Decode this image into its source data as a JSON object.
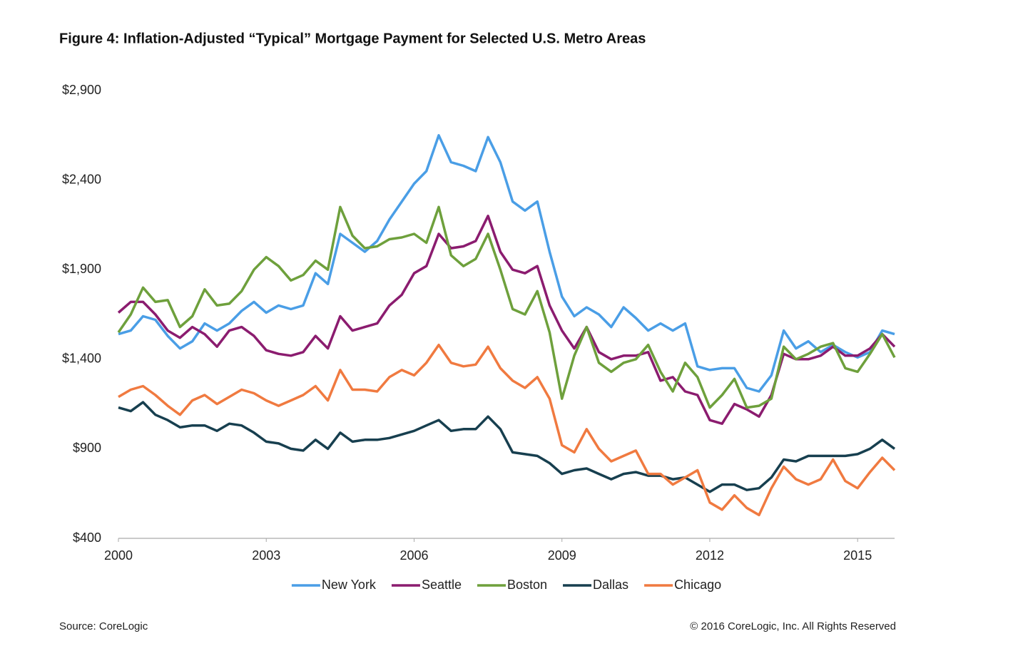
{
  "chart_data": {
    "type": "line",
    "title": "Figure 4: Inflation-Adjusted “Typical” Mortgage Payment for Selected U.S. Metro Areas",
    "source": "Source: CoreLogic",
    "copyright": "© 2016 CoreLogic, Inc. All Rights Reserved",
    "x": [
      2000,
      2000.25,
      2000.5,
      2000.75,
      2001,
      2001.25,
      2001.5,
      2001.75,
      2002,
      2002.25,
      2002.5,
      2002.75,
      2003,
      2003.25,
      2003.5,
      2003.75,
      2004,
      2004.25,
      2004.5,
      2004.75,
      2005,
      2005.25,
      2005.5,
      2005.75,
      2006,
      2006.25,
      2006.5,
      2006.75,
      2007,
      2007.25,
      2007.5,
      2007.75,
      2008,
      2008.25,
      2008.5,
      2008.75,
      2009,
      2009.25,
      2009.5,
      2009.75,
      2010,
      2010.25,
      2010.5,
      2010.75,
      2011,
      2011.25,
      2011.5,
      2011.75,
      2012,
      2012.25,
      2012.5,
      2012.75,
      2013,
      2013.25,
      2013.5,
      2013.75,
      2014,
      2014.25,
      2014.5,
      2014.75,
      2015,
      2015.25,
      2015.5,
      2015.75
    ],
    "xlim": [
      2000,
      2015.75
    ],
    "xticks": [
      2000,
      2003,
      2006,
      2009,
      2012,
      2015
    ],
    "ylim": [
      400,
      2900
    ],
    "yticks": [
      {
        "value": 400,
        "label": "$400"
      },
      {
        "value": 900,
        "label": "$900"
      },
      {
        "value": 1400,
        "label": "$1,400"
      },
      {
        "value": 1900,
        "label": "$1,900"
      },
      {
        "value": 2400,
        "label": "$2,400"
      },
      {
        "value": 2900,
        "label": "$2,900"
      }
    ],
    "grid": false,
    "legend": "bottom",
    "series": [
      {
        "name": "New York",
        "color": "#4a9ee6",
        "values": [
          1540,
          1560,
          1640,
          1620,
          1530,
          1460,
          1500,
          1600,
          1560,
          1600,
          1670,
          1720,
          1660,
          1700,
          1680,
          1700,
          1880,
          1820,
          2100,
          2050,
          2000,
          2060,
          2180,
          2280,
          2380,
          2450,
          2650,
          2500,
          2480,
          2450,
          2640,
          2500,
          2280,
          2230,
          2280,
          2000,
          1750,
          1640,
          1690,
          1650,
          1580,
          1690,
          1630,
          1560,
          1600,
          1560,
          1600,
          1360,
          1340,
          1350,
          1350,
          1240,
          1220,
          1310,
          1560,
          1460,
          1500,
          1440,
          1480,
          1440,
          1410,
          1440,
          1560,
          1540
        ]
      },
      {
        "name": "Seattle",
        "color": "#8b1c6f",
        "values": [
          1660,
          1720,
          1720,
          1650,
          1560,
          1520,
          1580,
          1540,
          1470,
          1560,
          1580,
          1530,
          1450,
          1430,
          1420,
          1440,
          1530,
          1460,
          1640,
          1560,
          1580,
          1600,
          1700,
          1760,
          1880,
          1920,
          2100,
          2020,
          2030,
          2060,
          2200,
          2000,
          1900,
          1880,
          1920,
          1700,
          1560,
          1460,
          1580,
          1440,
          1400,
          1420,
          1420,
          1440,
          1280,
          1300,
          1220,
          1200,
          1060,
          1040,
          1150,
          1120,
          1080,
          1200,
          1430,
          1400,
          1400,
          1420,
          1470,
          1420,
          1420,
          1460,
          1540,
          1470
        ]
      },
      {
        "name": "Boston",
        "color": "#6ea03c",
        "values": [
          1550,
          1650,
          1800,
          1720,
          1730,
          1580,
          1640,
          1790,
          1700,
          1710,
          1780,
          1900,
          1970,
          1920,
          1840,
          1870,
          1950,
          1900,
          2250,
          2090,
          2020,
          2030,
          2070,
          2080,
          2100,
          2050,
          2250,
          1980,
          1920,
          1960,
          2100,
          1900,
          1680,
          1650,
          1780,
          1550,
          1180,
          1420,
          1580,
          1380,
          1330,
          1380,
          1400,
          1480,
          1330,
          1220,
          1380,
          1300,
          1130,
          1200,
          1290,
          1130,
          1140,
          1180,
          1470,
          1400,
          1430,
          1470,
          1490,
          1350,
          1330,
          1430,
          1540,
          1410
        ]
      },
      {
        "name": "Dallas",
        "color": "#173f4f",
        "values": [
          1130,
          1110,
          1160,
          1090,
          1060,
          1020,
          1030,
          1030,
          1000,
          1040,
          1030,
          990,
          940,
          930,
          900,
          890,
          950,
          900,
          990,
          940,
          950,
          950,
          960,
          980,
          1000,
          1030,
          1060,
          1000,
          1010,
          1010,
          1080,
          1010,
          880,
          870,
          860,
          820,
          760,
          780,
          790,
          760,
          730,
          760,
          770,
          750,
          750,
          730,
          740,
          700,
          660,
          700,
          700,
          670,
          680,
          740,
          840,
          830,
          860,
          860,
          860,
          860,
          870,
          900,
          950,
          900
        ]
      },
      {
        "name": "Chicago",
        "color": "#f07a40",
        "values": [
          1190,
          1230,
          1250,
          1200,
          1140,
          1090,
          1170,
          1200,
          1150,
          1190,
          1230,
          1210,
          1170,
          1140,
          1170,
          1200,
          1250,
          1170,
          1340,
          1230,
          1230,
          1220,
          1300,
          1340,
          1310,
          1380,
          1480,
          1380,
          1360,
          1370,
          1470,
          1350,
          1280,
          1240,
          1300,
          1180,
          920,
          880,
          1010,
          900,
          830,
          860,
          890,
          760,
          760,
          700,
          740,
          780,
          600,
          560,
          640,
          570,
          530,
          680,
          800,
          730,
          700,
          730,
          840,
          720,
          680,
          770,
          850,
          780
        ]
      }
    ]
  }
}
